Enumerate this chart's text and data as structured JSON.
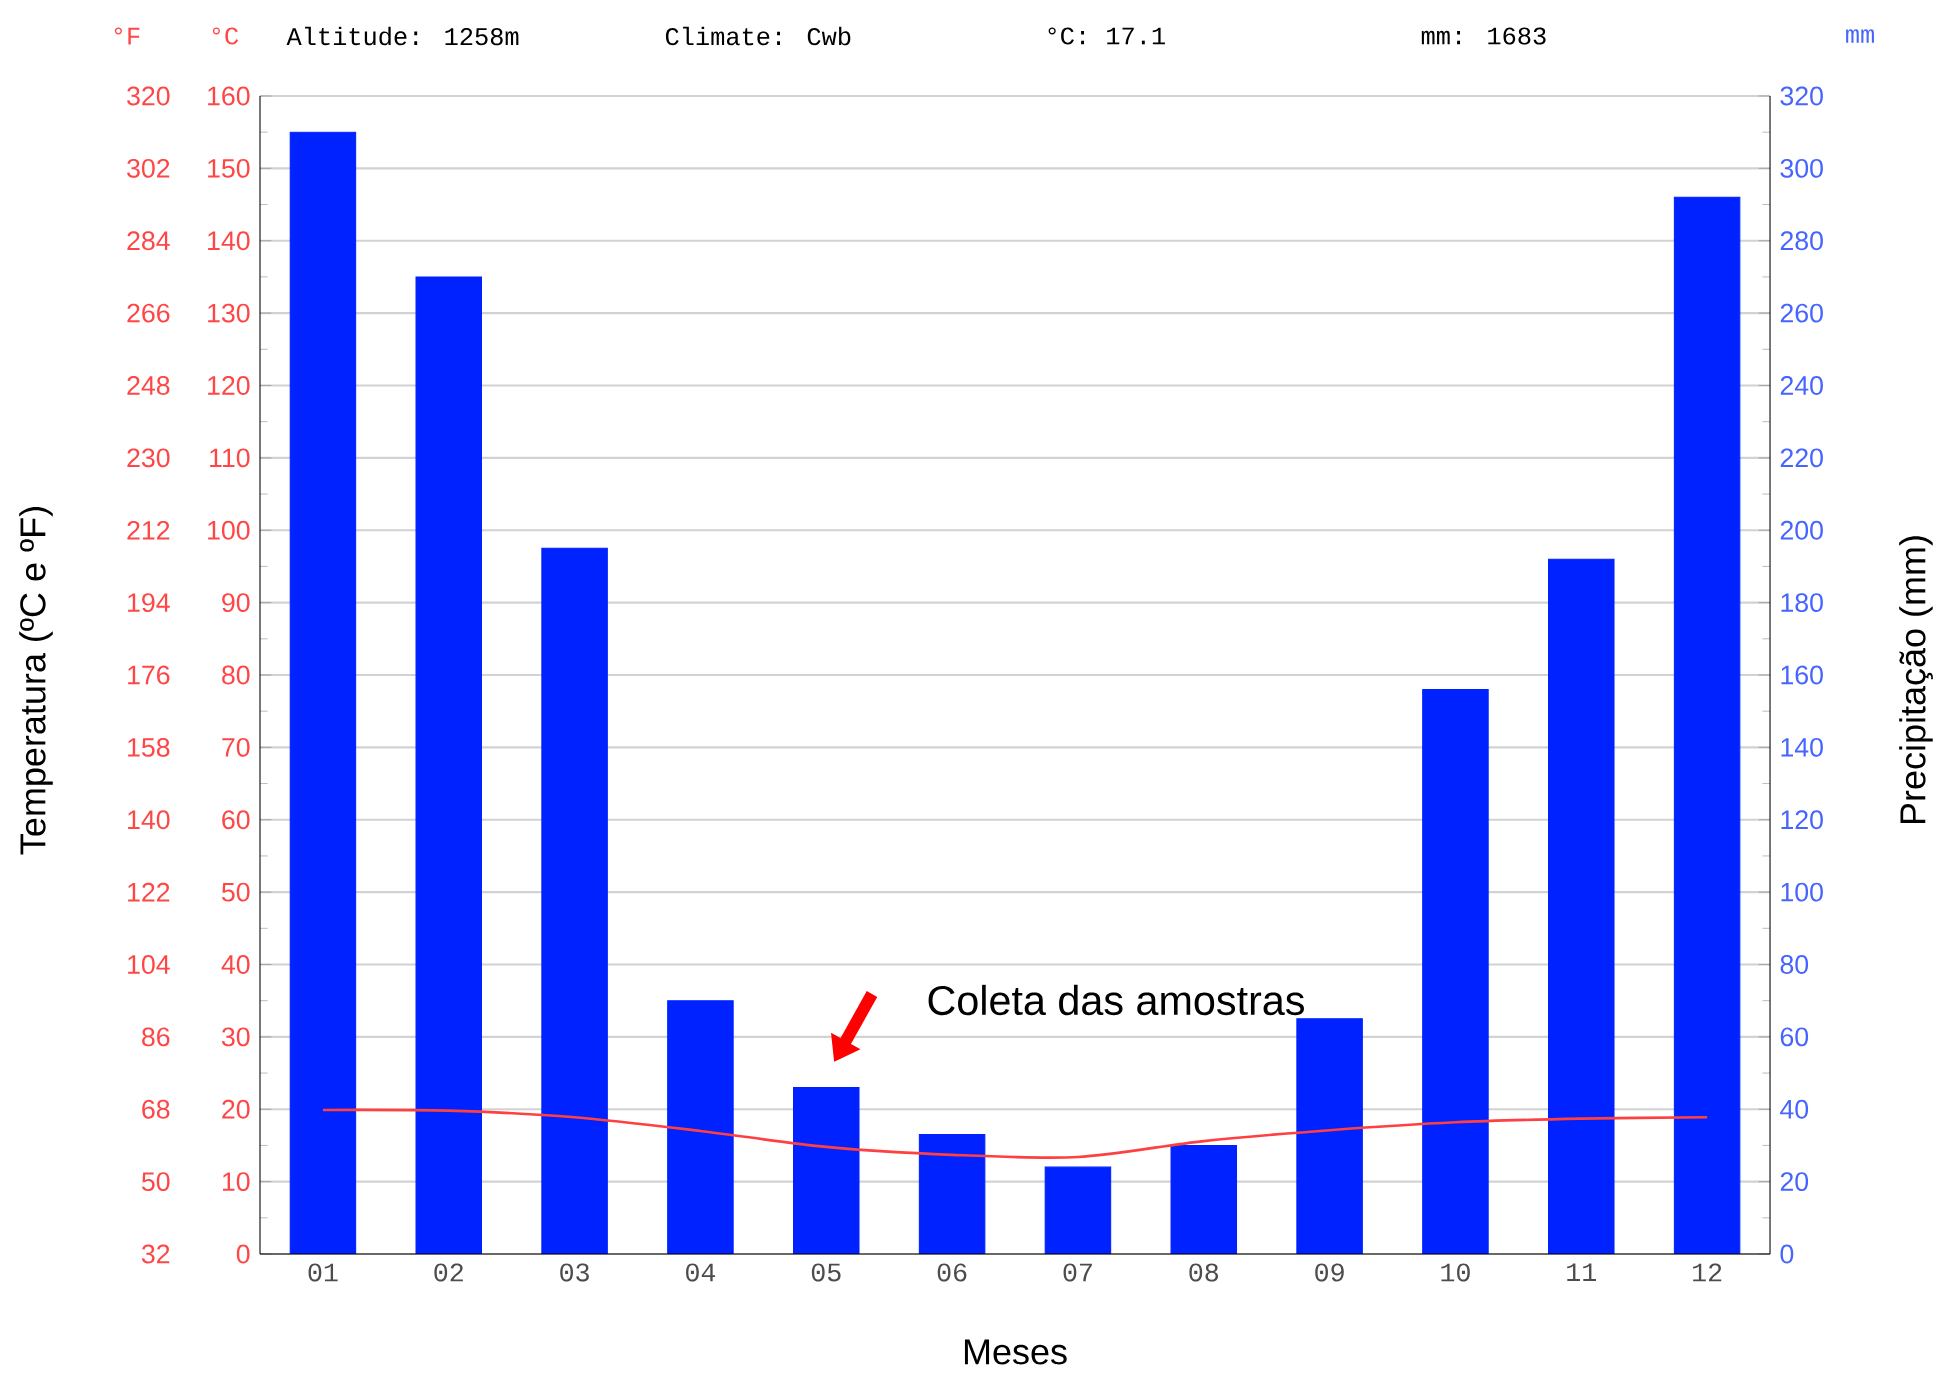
{
  "chart_data": {
    "type": "bar",
    "categories": [
      "01",
      "02",
      "03",
      "04",
      "05",
      "06",
      "07",
      "08",
      "09",
      "10",
      "11",
      "12"
    ],
    "series": [
      {
        "axis": "y2",
        "color": "#0022ff",
        "values": [
          310,
          270,
          195,
          70,
          46,
          33,
          24,
          30,
          65,
          156,
          192,
          292
        ]
      },
      {
        "type": "line",
        "axis": "y",
        "color": "#ff4040",
        "values": [
          19.9,
          19.8,
          18.9,
          17.0,
          14.8,
          13.7,
          13.4,
          15.6,
          17.1,
          18.2,
          18.7,
          18.9
        ]
      }
    ],
    "xlabel": "Meses",
    "ylabel": "Temperatura (ºC e ºF)",
    "y2label": "Precipitação (mm)",
    "ylim": [
      0,
      160
    ],
    "yticks": [
      0,
      10,
      20,
      30,
      40,
      50,
      60,
      70,
      80,
      90,
      100,
      110,
      120,
      130,
      140,
      150,
      160
    ],
    "y2lim": [
      0,
      320
    ],
    "y2ticks": [
      0,
      20,
      40,
      60,
      80,
      100,
      120,
      140,
      160,
      180,
      200,
      220,
      240,
      260,
      280,
      300,
      320
    ],
    "y3lim": [
      32,
      320
    ],
    "y3ticks": [
      32,
      50,
      68,
      86,
      104,
      122,
      140,
      158,
      176,
      194,
      212,
      230,
      248,
      266,
      284,
      302,
      320
    ],
    "grid": "y",
    "annotations": [
      "°F",
      "°C",
      "mm",
      "Altitude: 1258m",
      "Climate: Cwb",
      "°C: 17.1",
      "mm: 1683",
      "Coleta das amostras"
    ]
  }
}
